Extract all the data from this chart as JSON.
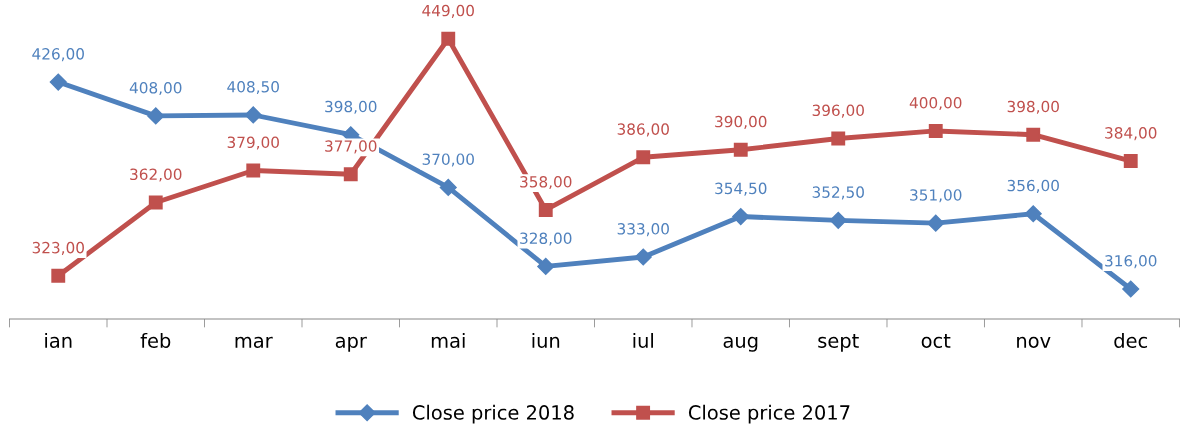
{
  "chart_data": {
    "type": "line",
    "categories": [
      "ian",
      "feb",
      "mar",
      "apr",
      "mai",
      "iun",
      "iul",
      "aug",
      "sept",
      "oct",
      "nov",
      "dec"
    ],
    "series": [
      {
        "name": "Close price 2018",
        "color": "#4f81bd",
        "marker": "diamond",
        "values": [
          426.0,
          408.0,
          408.5,
          398.0,
          370.0,
          328.0,
          333.0,
          354.5,
          352.5,
          351.0,
          356.0,
          316.0
        ],
        "value_labels": [
          "426,00",
          "408,00",
          "408,50",
          "398,00",
          "370,00",
          "328,00",
          "333,00",
          "354,50",
          "352,50",
          "351,00",
          "356,00",
          "316,00"
        ]
      },
      {
        "name": "Close price 2017",
        "color": "#c0504d",
        "marker": "square",
        "values": [
          323.0,
          362.0,
          379.0,
          377.0,
          449.0,
          358.0,
          386.0,
          390.0,
          396.0,
          400.0,
          398.0,
          384.0
        ],
        "value_labels": [
          "323,00",
          "362,00",
          "379,00",
          "377,00",
          "449,00",
          "358,00",
          "386,00",
          "390,00",
          "396,00",
          "400,00",
          "398,00",
          "384,00"
        ]
      }
    ],
    "legend": "bottom",
    "grid": false,
    "tick_labels": "x",
    "line_style": "solid"
  }
}
